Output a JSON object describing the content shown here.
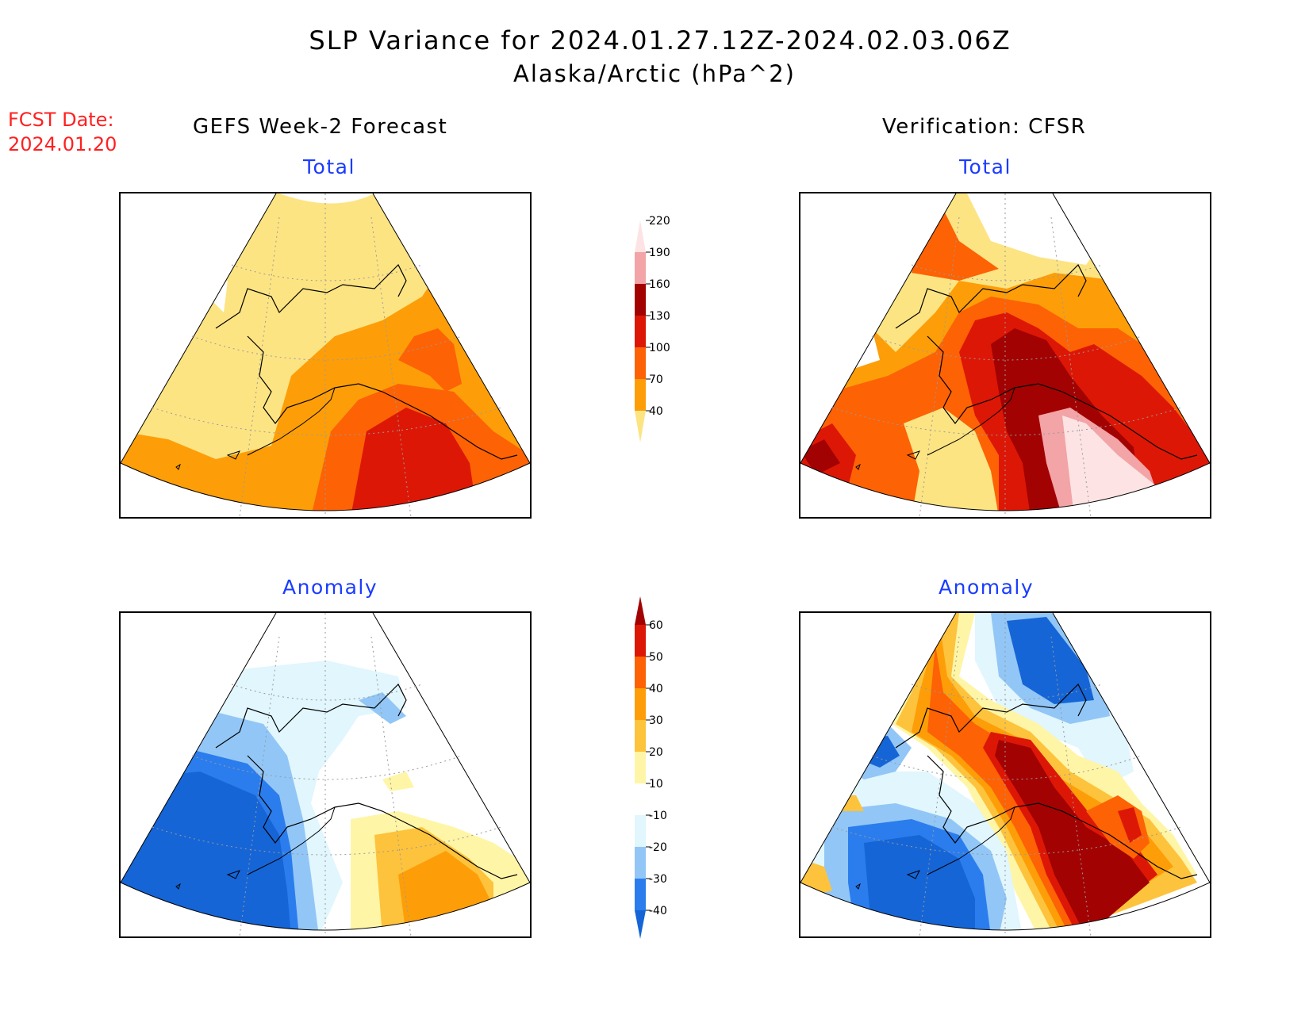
{
  "header": {
    "title": "SLP Variance for 2024.01.27.12Z-2024.02.03.06Z",
    "subtitle": "Alaska/Arctic (hPa^2)",
    "fcst_label": "FCST Date:",
    "fcst_date": "2024.01.20"
  },
  "columns": {
    "left_title": "GEFS Week-2 Forecast",
    "right_title": "Verification: CFSR"
  },
  "panels": {
    "forecast_total": {
      "label": "Total"
    },
    "verification_total": {
      "label": "Total"
    },
    "forecast_anomaly": {
      "label": "Anomaly"
    },
    "verification_anomaly": {
      "label": "Anomaly"
    }
  },
  "colorbars": {
    "total": {
      "ticks": [
        "40",
        "70",
        "100",
        "130",
        "160",
        "190",
        "220"
      ],
      "colors": [
        "#fde483",
        "#fd9e08",
        "#fd6205",
        "#dd1706",
        "#a30202",
        "#f2a4a7",
        "#fde3e3"
      ]
    },
    "anomaly": {
      "ticks": [
        "-40",
        "-30",
        "-20",
        "-10",
        "10",
        "20",
        "30",
        "40",
        "50",
        "60"
      ],
      "colors": [
        "#1565d6",
        "#2b7ded",
        "#92c6f6",
        "#e1f6fd",
        "#ffffff",
        "#fff5a6",
        "#fdc33c",
        "#fd9e08",
        "#fd6205",
        "#dd1706",
        "#a30202"
      ]
    }
  }
}
